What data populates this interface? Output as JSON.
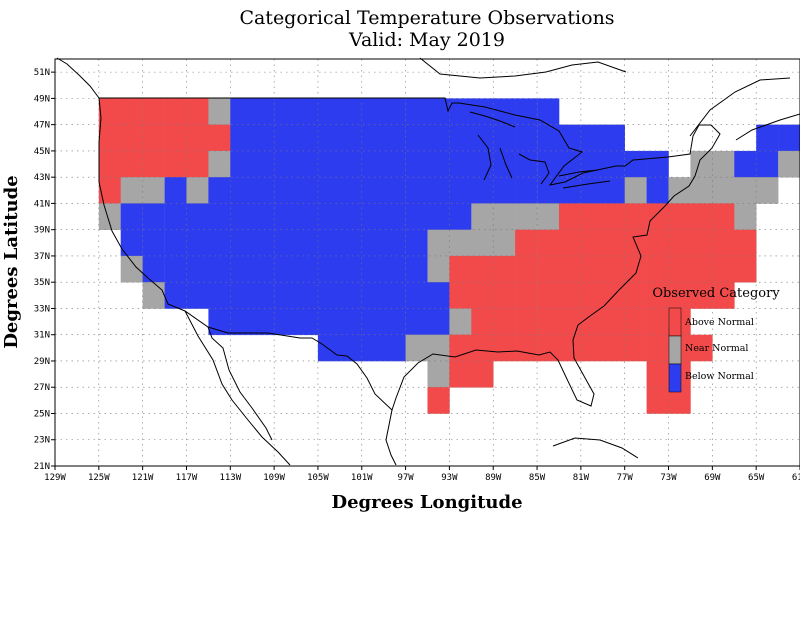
{
  "chart_data": {
    "type": "heatmap",
    "title_lines": [
      "Categorical Temperature Observations",
      "Valid: May 2019"
    ],
    "xlabel": "Degrees Longitude",
    "ylabel": "Degrees Latitude",
    "xlim": [
      -129,
      -61
    ],
    "ylim": [
      21,
      52
    ],
    "x_ticks": [
      -129,
      -125,
      -121,
      -117,
      -113,
      -109,
      -105,
      -101,
      -97,
      -93,
      -89,
      -85,
      -81,
      -77,
      -73,
      -69,
      -65,
      -61
    ],
    "x_tick_labels": [
      "129W",
      "125W",
      "121W",
      "117W",
      "113W",
      "109W",
      "105W",
      "101W",
      "97W",
      "93W",
      "89W",
      "85W",
      "81W",
      "77W",
      "73W",
      "69W",
      "65W",
      "61W"
    ],
    "y_ticks": [
      21,
      23,
      25,
      27,
      29,
      31,
      33,
      35,
      37,
      39,
      41,
      43,
      45,
      47,
      49,
      51
    ],
    "y_tick_labels": [
      "21N",
      "23N",
      "25N",
      "27N",
      "29N",
      "31N",
      "33N",
      "35N",
      "37N",
      "39N",
      "41N",
      "43N",
      "45N",
      "47N",
      "49N",
      "51N"
    ],
    "grid": true,
    "cell_size_deg": 2,
    "categories": [
      "Above Normal",
      "Near Normal",
      "Below Normal"
    ],
    "category_colors": {
      "A": "#f24a4a",
      "N": "#a6a6a6",
      "B": "#2e3cf0"
    },
    "grid_rows": [
      {
        "lat_bottom": 47,
        "lon_west": -125,
        "codes": "AAAAANBBBBBBBBBBBBBBB"
      },
      {
        "lat_bottom": 45,
        "lon_west": -125,
        "codes": "AAAAAABBBBBBBBBBBBBBBBBB......BB"
      },
      {
        "lat_bottom": 43,
        "lon_west": -125,
        "codes": "AAAAANBBBBBBBBBBBBBBBBBBBB.NNBBNBBB"
      },
      {
        "lat_bottom": 41,
        "lon_west": -125,
        "codes": "ANNBNBBBBBBBBBBBBBBBBBBBNBNNNNN"
      },
      {
        "lat_bottom": 39,
        "lon_west": -125,
        "codes": "NBBBBBBBBBBBBBBBBNNNNAAAAAAAAN"
      },
      {
        "lat_bottom": 37,
        "lon_west": -125,
        "codes": ".BBBBBBBBBBBBBBNNNNAAAAAAAAAAA"
      },
      {
        "lat_bottom": 35,
        "lon_west": -125,
        "codes": ".NBBBBBBBBBBBBBNAAAAAAAAAAAAAA"
      },
      {
        "lat_bottom": 33,
        "lon_west": -125,
        "codes": "..NBBBBBBBBBBBBBAAAAAAAAAAAAA"
      },
      {
        "lat_bottom": 31,
        "lon_west": -125,
        "codes": ".....BBBBBBBBBBBNAAAAAAAAAA"
      },
      {
        "lat_bottom": 29,
        "lon_west": -125,
        "codes": "..........BBBBNNAAAAAAAAAAAA"
      },
      {
        "lat_bottom": 27,
        "lon_west": -125,
        "codes": "...............NAA.......AA"
      },
      {
        "lat_bottom": 25,
        "lon_west": -125,
        "codes": "...............A.........AA"
      }
    ],
    "legend_title": "Observed Category",
    "legend_position": "right"
  }
}
